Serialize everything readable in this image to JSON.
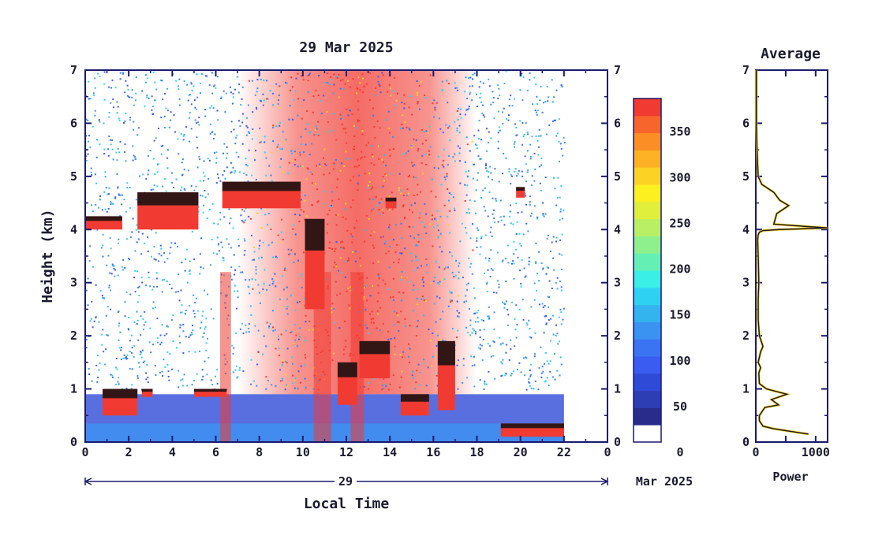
{
  "chart_data": [
    {
      "type": "heatmap",
      "title": "29 Mar 2025",
      "xlabel": "Local Time",
      "ylabel": "Height (km)",
      "xlim": [
        0,
        24
      ],
      "ylim": [
        0,
        7
      ],
      "x_ticks": [
        "0",
        "2",
        "4",
        "6",
        "8",
        "10",
        "12",
        "14",
        "16",
        "18",
        "20",
        "22",
        "0"
      ],
      "y_ticks": [
        "0",
        "1",
        "2",
        "3",
        "4",
        "5",
        "6",
        "7"
      ],
      "date_bar": {
        "day": "29",
        "month": "Mar 2025"
      },
      "data_end_hour": 22,
      "cloud_layers": [
        {
          "x": [
            0,
            1.7
          ],
          "y": [
            4.0,
            4.25
          ]
        },
        {
          "x": [
            2.4,
            5.2
          ],
          "y": [
            4.0,
            4.7
          ]
        },
        {
          "x": [
            6.3,
            9.9
          ],
          "y": [
            4.4,
            4.9
          ]
        },
        {
          "x": [
            10.1,
            11.0
          ],
          "y": [
            2.5,
            4.2
          ]
        },
        {
          "x": [
            13.8,
            14.3
          ],
          "y": [
            4.4,
            4.6
          ]
        },
        {
          "x": [
            19.8,
            20.2
          ],
          "y": [
            4.6,
            4.8
          ]
        },
        {
          "x": [
            0.8,
            2.4
          ],
          "y": [
            0.5,
            1.0
          ]
        },
        {
          "x": [
            2.6,
            3.1
          ],
          "y": [
            0.85,
            1.0
          ]
        },
        {
          "x": [
            5.0,
            6.5
          ],
          "y": [
            0.85,
            1.0
          ]
        },
        {
          "x": [
            11.6,
            12.5
          ],
          "y": [
            0.7,
            1.5
          ]
        },
        {
          "x": [
            12.6,
            14.0
          ],
          "y": [
            1.2,
            1.9
          ]
        },
        {
          "x": [
            14.5,
            15.8
          ],
          "y": [
            0.5,
            0.9
          ]
        },
        {
          "x": [
            16.2,
            17.0
          ],
          "y": [
            0.6,
            1.9
          ]
        },
        {
          "x": [
            19.1,
            22.0
          ],
          "y": [
            0.1,
            0.35
          ]
        }
      ]
    },
    {
      "type": "line",
      "title": "Average",
      "xlabel": "Power",
      "ylabel": "",
      "xlim": [
        0,
        1200
      ],
      "ylim": [
        0,
        7
      ],
      "x_ticks": [
        "0",
        "1000"
      ],
      "y_ticks": [
        "0",
        "1",
        "2",
        "3",
        "4",
        "5",
        "6",
        "7"
      ],
      "series": [
        {
          "x": [
            880,
            300,
            120,
            60,
            60,
            150,
            380,
            260,
            520,
            180,
            60,
            50,
            80,
            40,
            80,
            120,
            60,
            40,
            40,
            50,
            40,
            30,
            40,
            60,
            120,
            400,
            1200,
            300,
            350,
            550,
            400,
            300,
            100,
            40,
            20,
            10,
            10
          ],
          "y": [
            0.15,
            0.25,
            0.3,
            0.4,
            0.5,
            0.65,
            0.7,
            0.8,
            0.9,
            1.0,
            1.1,
            1.3,
            1.4,
            1.5,
            1.7,
            1.8,
            2.0,
            2.3,
            2.7,
            3.0,
            3.5,
            3.8,
            3.9,
            3.95,
            3.98,
            4.0,
            4.03,
            4.1,
            4.3,
            4.45,
            4.55,
            4.7,
            4.85,
            5.0,
            5.5,
            6.0,
            7.0
          ]
        }
      ]
    },
    {
      "type": "colorbar",
      "ticks": [
        "0",
        "50",
        "100",
        "150",
        "200",
        "250",
        "300",
        "350"
      ],
      "range": [
        0,
        375
      ],
      "colors": [
        "#ffffff",
        "#2a2c8c",
        "#2d3db3",
        "#2f4ad7",
        "#3a5cf0",
        "#3b74f3",
        "#3b93f1",
        "#34b4ef",
        "#2fd1f2",
        "#3af0e6",
        "#64f0b4",
        "#8ef08c",
        "#b8ef64",
        "#e0ee3c",
        "#fcf020",
        "#fcd224",
        "#fcb224",
        "#fb8e25",
        "#f8652c",
        "#f13b32"
      ]
    }
  ]
}
